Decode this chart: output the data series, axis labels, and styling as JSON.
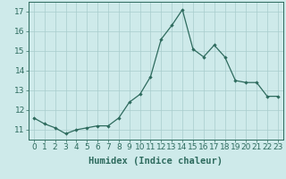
{
  "x": [
    0,
    1,
    2,
    3,
    4,
    5,
    6,
    7,
    8,
    9,
    10,
    11,
    12,
    13,
    14,
    15,
    16,
    17,
    18,
    19,
    20,
    21,
    22,
    23
  ],
  "y": [
    11.6,
    11.3,
    11.1,
    10.8,
    11.0,
    11.1,
    11.2,
    11.2,
    11.6,
    12.4,
    12.8,
    13.7,
    15.6,
    16.3,
    17.1,
    15.1,
    14.7,
    15.3,
    14.7,
    13.5,
    13.4,
    13.4,
    12.7,
    12.7
  ],
  "line_color": "#2e6b5e",
  "marker": "D",
  "marker_size": 2.2,
  "bg_color": "#ceeaea",
  "grid_color": "#a8cccc",
  "xlabel": "Humidex (Indice chaleur)",
  "xlim": [
    -0.5,
    23.5
  ],
  "ylim": [
    10.5,
    17.5
  ],
  "yticks": [
    11,
    12,
    13,
    14,
    15,
    16,
    17
  ],
  "xticks": [
    0,
    1,
    2,
    3,
    4,
    5,
    6,
    7,
    8,
    9,
    10,
    11,
    12,
    13,
    14,
    15,
    16,
    17,
    18,
    19,
    20,
    21,
    22,
    23
  ],
  "xlabel_fontsize": 7.5,
  "tick_fontsize": 6.5
}
